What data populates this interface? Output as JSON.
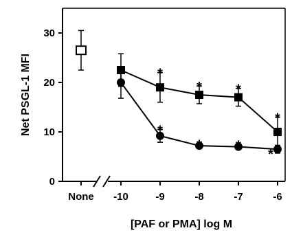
{
  "chart_data": {
    "type": "scatter",
    "xlabel": "[PAF or PMA] log M",
    "ylabel": "Net PSGL-1 MFI",
    "ylim": [
      0,
      35
    ],
    "yticks": [
      0,
      10,
      20,
      30
    ],
    "ytick_labels": [
      "0",
      "10",
      "20",
      "30"
    ],
    "xticks": [
      "None",
      "-10",
      "-9",
      "-8",
      "-7",
      "-6"
    ],
    "axis_break": "between None and -10",
    "grid": false,
    "legend": "none",
    "control": {
      "x": "None",
      "y": 26.5,
      "err": 4.0,
      "marker": "open-square"
    },
    "series": [
      {
        "marker": "filled-square",
        "x": [
          -10,
          -9,
          -8,
          -7,
          -6
        ],
        "y": [
          22.5,
          19.0,
          17.5,
          17.0,
          10.0
        ],
        "err": [
          3.3,
          3.0,
          1.8,
          1.8,
          3.0
        ],
        "significant": [
          false,
          true,
          true,
          true,
          true
        ]
      },
      {
        "marker": "filled-circle",
        "x": [
          -10,
          -9,
          -8,
          -7,
          -6
        ],
        "y": [
          20.0,
          9.2,
          7.2,
          7.0,
          6.5
        ],
        "err": [
          3.2,
          1.3,
          0.4,
          0.4,
          0.8
        ],
        "significant": [
          false,
          true,
          true,
          true,
          true
        ]
      }
    ],
    "annotation_text": "*"
  }
}
